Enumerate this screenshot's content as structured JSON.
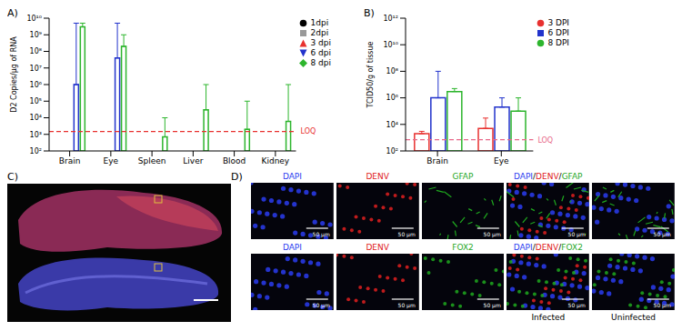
{
  "chart_data": [
    {
      "type": "bar",
      "title": "A)",
      "y_label": "D2 Copies/µg of RNA",
      "log": "y",
      "legend": "right",
      "categories": [
        "Brain",
        "Eye",
        "Spleen",
        "Liver",
        "Blood",
        "Kidney"
      ],
      "series": [
        {
          "name": "1dpi",
          "color": "#000000",
          "marker": "circle",
          "values": [
            100,
            100,
            100,
            100,
            100,
            100
          ],
          "error_upper": [
            null,
            null,
            null,
            null,
            null,
            null
          ]
        },
        {
          "name": "2dpi",
          "color": "#999999",
          "marker": "square",
          "values": [
            100,
            100,
            100,
            100,
            100,
            100
          ],
          "error_upper": [
            null,
            null,
            null,
            null,
            null,
            null
          ]
        },
        {
          "name": "3 dpi",
          "color": "#e8312f",
          "marker": "triangle",
          "values": [
            100,
            100,
            100,
            100,
            100,
            100
          ],
          "error_upper": [
            null,
            null,
            null,
            null,
            null,
            null
          ]
        },
        {
          "name": "6 dpi",
          "color": "#2233cc",
          "marker": "triangle_down",
          "values": [
            1000000,
            40000000,
            100,
            100,
            100,
            100
          ],
          "error_upper": [
            5000000000,
            5000000000,
            null,
            null,
            null,
            null
          ]
        },
        {
          "name": "8 dpi",
          "color": "#2db52d",
          "marker": "diamond",
          "values": [
            3000000000,
            200000000,
            700,
            30000,
            2000,
            6000
          ],
          "error_upper": [
            5000000000,
            1000000000,
            10000,
            1000000,
            100000,
            1000000
          ]
        }
      ],
      "ylim": [
        100,
        10000000000
      ],
      "yticks": [
        {
          "value": 100,
          "label": "10²"
        },
        {
          "value": 1000,
          "label": "10³"
        },
        {
          "value": 10000,
          "label": "10⁴"
        },
        {
          "value": 100000,
          "label": "10⁵"
        },
        {
          "value": 1000000,
          "label": "10⁶"
        },
        {
          "value": 10000000,
          "label": "10⁷"
        },
        {
          "value": 100000000,
          "label": "10⁸"
        },
        {
          "value": 1000000000,
          "label": "10⁹"
        },
        {
          "value": 10000000000,
          "label": "10¹⁰"
        }
      ],
      "annotations": [
        {
          "y": 1500,
          "text": "LOQ",
          "color": "#e8312f"
        }
      ]
    },
    {
      "type": "bar",
      "title": "B)",
      "y_label": "TCID50/g of tissue",
      "log": "y",
      "legend": "right",
      "categories": [
        "Brain",
        "Eye"
      ],
      "series": [
        {
          "name": "3 DPI",
          "color": "#e8312f",
          "marker": "circle",
          "values": [
            2000,
            5000
          ],
          "error_upper": [
            3000,
            30000
          ]
        },
        {
          "name": "6 DPI",
          "color": "#2233cc",
          "marker": "square",
          "values": [
            1000000,
            200000
          ],
          "error_upper": [
            100000000,
            1000000
          ]
        },
        {
          "name": "8 DPI",
          "color": "#2db52d",
          "marker": "circle",
          "values": [
            3000000,
            100000
          ],
          "error_upper": [
            5000000,
            1000000
          ]
        }
      ],
      "ylim": [
        100,
        1000000000000
      ],
      "yticks": [
        {
          "value": 100,
          "label": "10²"
        },
        {
          "value": 10000,
          "label": "10⁴"
        },
        {
          "value": 1000000,
          "label": "10⁶"
        },
        {
          "value": 100000000,
          "label": "10⁸"
        },
        {
          "value": 10000000000,
          "label": "10¹⁰"
        },
        {
          "value": 1000000000000,
          "label": "10¹²"
        }
      ],
      "annotations": [
        {
          "y": 700,
          "text": "LOQ",
          "color": "#e86a8a"
        }
      ]
    }
  ],
  "panel_c": {
    "label": "C)"
  },
  "panel_d": {
    "label": "D)",
    "rows": [
      {
        "labels": [
          "DAPI",
          "DENV",
          "GFAP",
          "DAPI/DENV/GFAP"
        ]
      },
      {
        "labels": [
          "DAPI",
          "DENV",
          "FOX2",
          "DAPI/DENV/FOX2"
        ]
      }
    ],
    "channel_colors": {
      "DAPI": "#2a3cf0",
      "DENV": "#e02020",
      "GFAP": "#1fa81f",
      "FOX2": "#1fa81f"
    },
    "scale_bar": "50 µm",
    "conditions": [
      "Infected",
      "Uninfected"
    ]
  }
}
